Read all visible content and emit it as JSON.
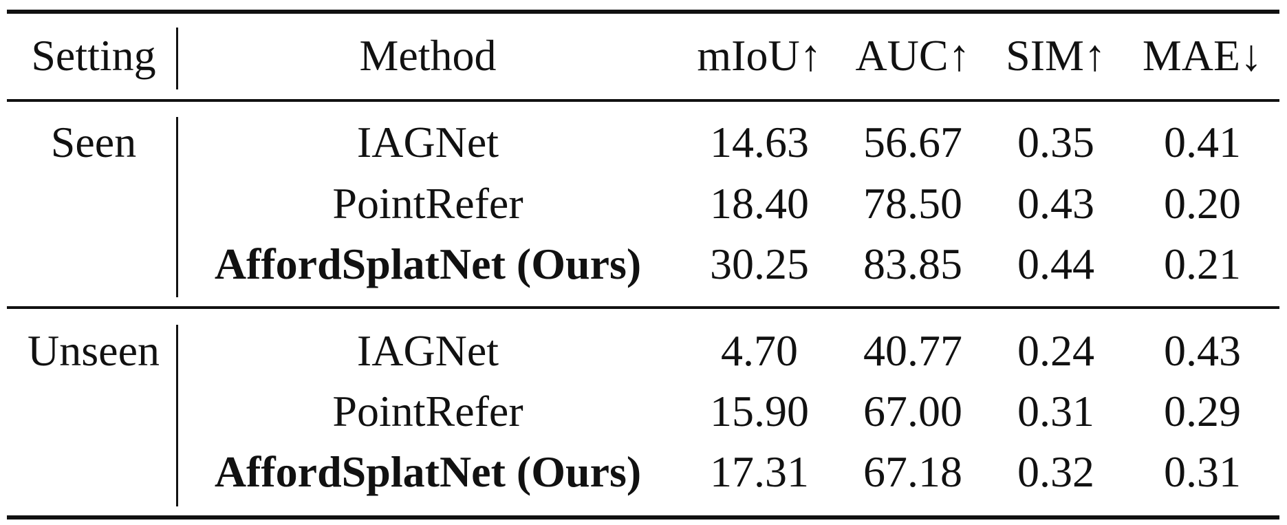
{
  "table": {
    "headers": {
      "setting": "Setting",
      "method": "Method",
      "miou": "mIoU↑",
      "auc": "AUC↑",
      "sim": "SIM↑",
      "mae": "MAE↓"
    },
    "groups": [
      {
        "setting": "Seen",
        "rows": [
          {
            "method": "IAGNet",
            "miou": "14.63",
            "auc": "56.67",
            "sim": "0.35",
            "mae": "0.41",
            "bold": false
          },
          {
            "method": "PointRefer",
            "miou": "18.40",
            "auc": "78.50",
            "sim": "0.43",
            "mae": "0.20",
            "bold": false
          },
          {
            "method": "AffordSplatNet (Ours)",
            "miou": "30.25",
            "auc": "83.85",
            "sim": "0.44",
            "mae": "0.21",
            "bold": true
          }
        ]
      },
      {
        "setting": "Unseen",
        "rows": [
          {
            "method": "IAGNet",
            "miou": "4.70",
            "auc": "40.77",
            "sim": "0.24",
            "mae": "0.43",
            "bold": false
          },
          {
            "method": "PointRefer",
            "miou": "15.90",
            "auc": "67.00",
            "sim": "0.31",
            "mae": "0.29",
            "bold": false
          },
          {
            "method": "AffordSplatNet (Ours)",
            "miou": "17.31",
            "auc": "67.18",
            "sim": "0.32",
            "mae": "0.31",
            "bold": true
          }
        ]
      }
    ]
  }
}
